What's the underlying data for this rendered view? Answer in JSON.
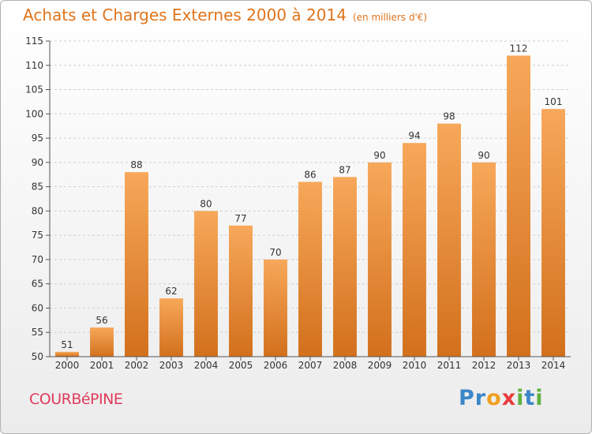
{
  "header": {
    "title": "Achats et Charges Externes 2000 à 2014",
    "subtitle": "(en milliers d'€)"
  },
  "footer": {
    "commune": "COURBéPINE",
    "logo_letters": [
      {
        "ch": "P",
        "color": "#3a86c8"
      },
      {
        "ch": "r",
        "color": "#3a86c8"
      },
      {
        "ch": "o",
        "color": "#f0a020"
      },
      {
        "ch": "x",
        "color": "#e83c3c"
      },
      {
        "ch": "i",
        "color": "#60b040"
      },
      {
        "ch": "t",
        "color": "#3a86c8"
      },
      {
        "ch": "i",
        "color": "#60b040"
      }
    ]
  },
  "chart_data": {
    "type": "bar",
    "title": "Achats et Charges Externes 2000 à 2014",
    "subtitle": "(en milliers d'€)",
    "categories": [
      "2000",
      "2001",
      "2002",
      "2003",
      "2004",
      "2005",
      "2006",
      "2007",
      "2008",
      "2009",
      "2010",
      "2011",
      "2012",
      "2013",
      "2014"
    ],
    "values": [
      51,
      56,
      88,
      62,
      80,
      77,
      70,
      86,
      87,
      90,
      94,
      98,
      90,
      112,
      101
    ],
    "ylim": [
      50,
      115
    ],
    "yticks": [
      50,
      55,
      60,
      65,
      70,
      75,
      80,
      85,
      90,
      95,
      100,
      105,
      110,
      115
    ],
    "grid": true,
    "bar_color_top": "#f7a85a",
    "bar_color_bottom": "#d2701c"
  }
}
